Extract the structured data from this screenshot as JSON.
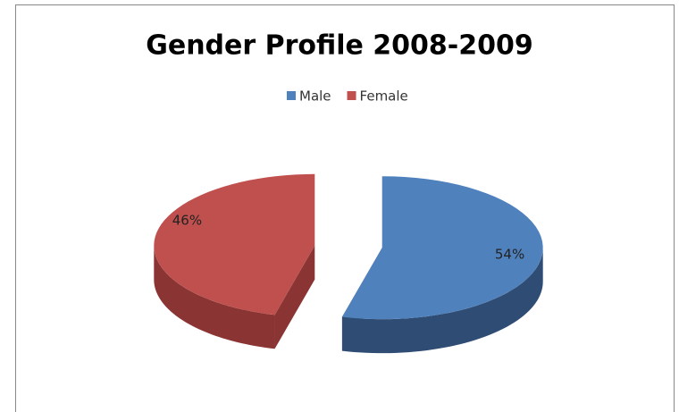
{
  "chart_data": {
    "type": "pie3d",
    "title": "Gender Profile 2008-2009",
    "categories": [
      "Male",
      "Female"
    ],
    "values": [
      54,
      46
    ],
    "value_labels": [
      "54%",
      "46%"
    ],
    "colors": [
      "#4f81bd",
      "#c0504d"
    ],
    "side_colors": [
      "#2f4d74",
      "#8a3533"
    ],
    "legend": "top",
    "exploded": true
  }
}
